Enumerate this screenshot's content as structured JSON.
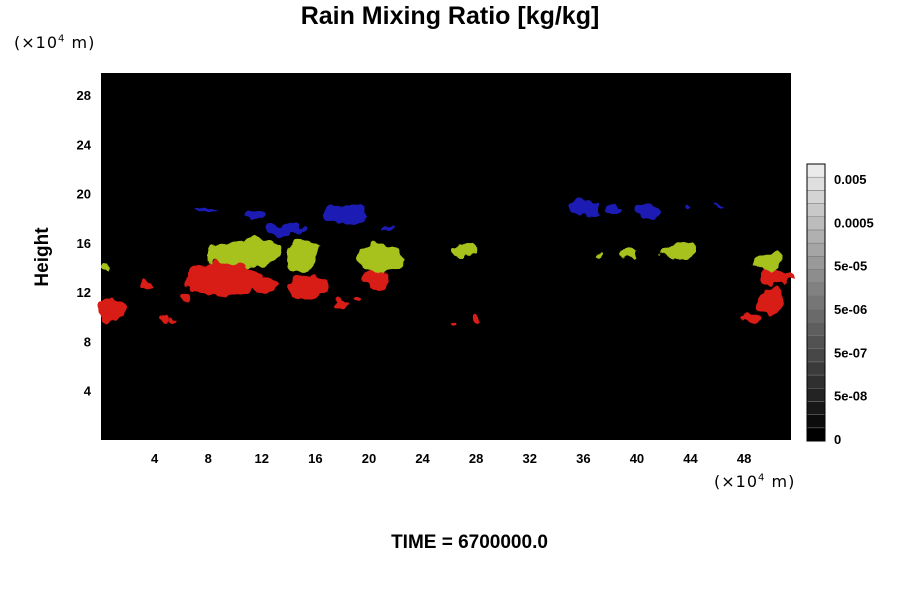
{
  "chart_data": {
    "type": "heatmap",
    "title": "Rain Mixing Ratio [kg/kg]",
    "ylabel": "Height",
    "xlabel": "",
    "x_unit_prefix": "(×10",
    "x_unit_exp": "4",
    "x_unit_suffix": " m)",
    "y_unit_prefix": "(×10",
    "y_unit_exp": "4",
    "y_unit_suffix": " m)",
    "xlim": [
      0,
      51.5
    ],
    "ylim": [
      0,
      29.8
    ],
    "x_ticks": [
      4,
      8,
      12,
      16,
      20,
      24,
      28,
      32,
      36,
      40,
      44,
      48
    ],
    "y_ticks": [
      4,
      8,
      12,
      16,
      20,
      24,
      28
    ],
    "colorbar": {
      "levels": 21,
      "labels": [
        "0",
        "5e-08",
        "5e-07",
        "5e-06",
        "5e-05",
        "0.0005",
        "0.005"
      ]
    },
    "footer": "TIME = 6700000.0",
    "colors": {
      "background": "#000000",
      "red": "#d81a14",
      "green": "#a7c21e",
      "blue": "#1a1ab4"
    },
    "features": [
      {
        "color": "red",
        "x": 0.8,
        "y": 10.6,
        "rx": 1.0,
        "ry": 0.9
      },
      {
        "color": "red",
        "x": 0.4,
        "y": 10.0,
        "rx": 0.5,
        "ry": 0.5
      },
      {
        "color": "red",
        "x": 3.5,
        "y": 12.5,
        "rx": 0.4,
        "ry": 0.4
      },
      {
        "color": "red",
        "x": 4.8,
        "y": 9.8,
        "rx": 0.3,
        "ry": 0.3
      },
      {
        "color": "red",
        "x": 5.3,
        "y": 9.7,
        "rx": 0.2,
        "ry": 0.2
      },
      {
        "color": "red",
        "x": 6.9,
        "y": 12.9,
        "rx": 0.7,
        "ry": 0.6
      },
      {
        "color": "red",
        "x": 9.3,
        "y": 13.1,
        "rx": 2.8,
        "ry": 1.4
      },
      {
        "color": "red",
        "x": 12.3,
        "y": 12.5,
        "rx": 0.8,
        "ry": 0.6
      },
      {
        "color": "red",
        "x": 15.5,
        "y": 12.4,
        "rx": 1.6,
        "ry": 1.0
      },
      {
        "color": "red",
        "x": 6.3,
        "y": 11.6,
        "rx": 0.4,
        "ry": 0.4
      },
      {
        "color": "red",
        "x": 17.8,
        "y": 11.1,
        "rx": 0.6,
        "ry": 0.4
      },
      {
        "color": "red",
        "x": 19.1,
        "y": 11.4,
        "rx": 0.3,
        "ry": 0.3
      },
      {
        "color": "red",
        "x": 20.5,
        "y": 13.0,
        "rx": 1.0,
        "ry": 0.9
      },
      {
        "color": "red",
        "x": 26.3,
        "y": 9.6,
        "rx": 0.2,
        "ry": 0.2
      },
      {
        "color": "red",
        "x": 28.2,
        "y": 9.9,
        "rx": 0.4,
        "ry": 0.3
      },
      {
        "color": "red",
        "x": 50.3,
        "y": 13.3,
        "rx": 1.2,
        "ry": 0.6
      },
      {
        "color": "red",
        "x": 50.0,
        "y": 11.3,
        "rx": 0.9,
        "ry": 1.2
      },
      {
        "color": "red",
        "x": 48.4,
        "y": 9.9,
        "rx": 0.7,
        "ry": 0.4
      },
      {
        "color": "green",
        "x": 0.5,
        "y": 13.9,
        "rx": 0.35,
        "ry": 0.35
      },
      {
        "color": "green",
        "x": 11.0,
        "y": 15.3,
        "rx": 2.3,
        "ry": 1.1
      },
      {
        "color": "green",
        "x": 9.0,
        "y": 15.1,
        "rx": 1.1,
        "ry": 0.9
      },
      {
        "color": "green",
        "x": 15.1,
        "y": 15.0,
        "rx": 1.3,
        "ry": 1.2
      },
      {
        "color": "green",
        "x": 20.8,
        "y": 14.8,
        "rx": 1.8,
        "ry": 1.1
      },
      {
        "color": "green",
        "x": 27.1,
        "y": 15.4,
        "rx": 0.9,
        "ry": 0.5
      },
      {
        "color": "green",
        "x": 37.0,
        "y": 15.1,
        "rx": 0.2,
        "ry": 0.2
      },
      {
        "color": "green",
        "x": 39.4,
        "y": 15.1,
        "rx": 0.7,
        "ry": 0.5
      },
      {
        "color": "green",
        "x": 43.0,
        "y": 15.3,
        "rx": 1.3,
        "ry": 0.6
      },
      {
        "color": "green",
        "x": 49.8,
        "y": 14.5,
        "rx": 1.1,
        "ry": 0.8
      },
      {
        "color": "blue",
        "x": 8.0,
        "y": 18.8,
        "rx": 1.0,
        "ry": 0.2
      },
      {
        "color": "blue",
        "x": 11.5,
        "y": 18.2,
        "rx": 1.0,
        "ry": 0.5
      },
      {
        "color": "blue",
        "x": 13.8,
        "y": 17.1,
        "rx": 1.4,
        "ry": 0.5
      },
      {
        "color": "blue",
        "x": 18.3,
        "y": 18.3,
        "rx": 1.7,
        "ry": 0.8
      },
      {
        "color": "blue",
        "x": 21.5,
        "y": 17.2,
        "rx": 0.5,
        "ry": 0.2
      },
      {
        "color": "blue",
        "x": 36.0,
        "y": 18.9,
        "rx": 1.3,
        "ry": 0.6
      },
      {
        "color": "blue",
        "x": 38.2,
        "y": 18.7,
        "rx": 0.6,
        "ry": 0.4
      },
      {
        "color": "blue",
        "x": 40.8,
        "y": 18.6,
        "rx": 0.9,
        "ry": 0.5
      },
      {
        "color": "blue",
        "x": 43.8,
        "y": 18.9,
        "rx": 0.3,
        "ry": 0.2
      },
      {
        "color": "blue",
        "x": 46.0,
        "y": 19.0,
        "rx": 0.3,
        "ry": 0.15
      }
    ]
  }
}
